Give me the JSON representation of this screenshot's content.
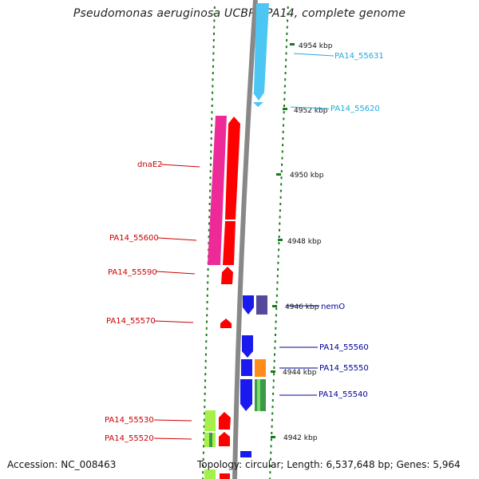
{
  "title": "Pseudomonas aeruginosa UCBPP-PA14, complete genome",
  "accession_text": "Accession: NC_008463",
  "summary_text": "Topology: circular; Length: 6,537,648 bp; Genes: 5,964",
  "colors": {
    "backbone": "#888888",
    "tick": "#1a7a1a",
    "label_red": "#cc0000",
    "label_blue": "#000099",
    "label_cyan": "#22aadd",
    "forward_gene": "#ff0000",
    "reverse_gene": "#1a1aee",
    "pink_feature": "#ee2a99",
    "cyan_feature": "#4cc6f2",
    "orange_feature": "#ff8c1a",
    "slate_feature": "#554a99",
    "lime_feature": "#a6f04a"
  },
  "scale_labels": [
    "4954 kbp",
    "4952 kbp",
    "4950 kbp",
    "4948 kbp",
    "4946 kbp",
    "4944 kbp",
    "4942 kbp"
  ],
  "gene_labels": [
    {
      "text": "PA14_55631",
      "color": "cyan"
    },
    {
      "text": "PA14_55620",
      "color": "cyan"
    },
    {
      "text": "dnaE2",
      "color": "red"
    },
    {
      "text": "PA14_55600",
      "color": "red"
    },
    {
      "text": "PA14_55590",
      "color": "red"
    },
    {
      "text": "nemO",
      "color": "blue"
    },
    {
      "text": "PA14_55570",
      "color": "red"
    },
    {
      "text": "PA14_55560",
      "color": "blue"
    },
    {
      "text": "PA14_55550",
      "color": "blue"
    },
    {
      "text": "PA14_55540",
      "color": "blue"
    },
    {
      "text": "PA14_55530",
      "color": "red"
    },
    {
      "text": "PA14_55520",
      "color": "red"
    }
  ]
}
